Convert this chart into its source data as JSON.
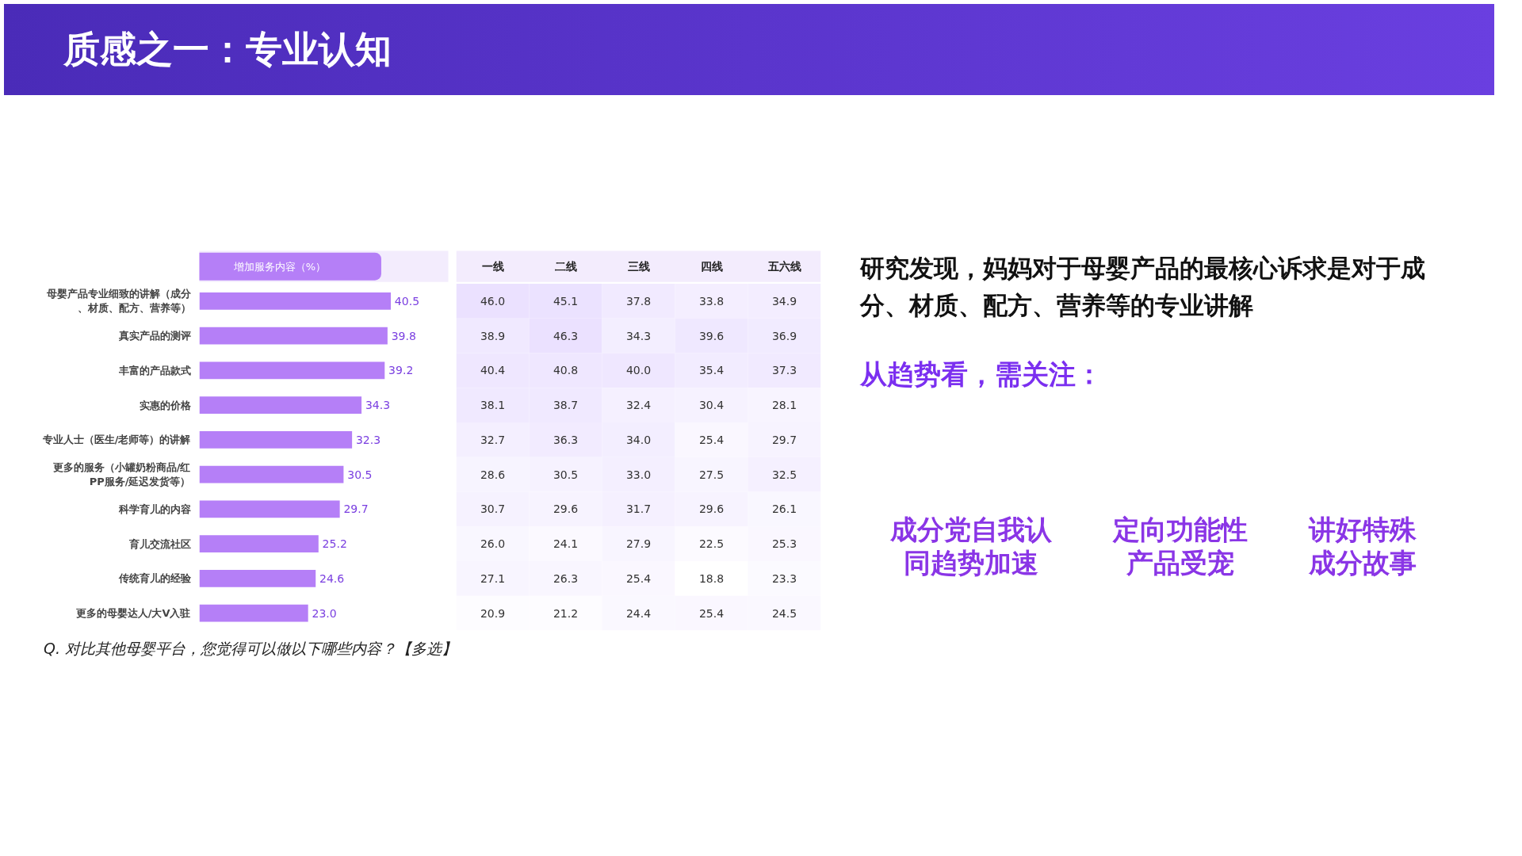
{
  "chart_data": [
    {
      "type": "bar",
      "orientation": "horizontal",
      "title": "质感之一：专业认知",
      "xlabel": "增加服务内容（%）",
      "categories": [
        "母婴产品专业细致的讲解（成分、材质、配方、营养等）",
        "真实产品的测评",
        "丰富的产品款式",
        "实惠的价格",
        "专业人士（医生/老师等）的讲解",
        "更多的服务（小罐奶粉商品/红PP服务/延迟发货等）",
        "科学育儿的内容",
        "育儿交流社区",
        "传统育儿的经验",
        "更多的母婴达人/大V入驻"
      ],
      "values": [
        40.5,
        39.8,
        39.2,
        34.3,
        32.3,
        30.5,
        29.7,
        25.2,
        24.6,
        23.0
      ],
      "color": "#b57ff7",
      "value_labels": [
        "40.5",
        "39.8",
        "39.2",
        "34.3",
        "32.3",
        "30.5",
        "29.7",
        "25.2",
        "24.6",
        "23.0"
      ],
      "annotations": [
        "Q. 对比其他母婴平台，您觉得可以做以下哪些内容？【多选】"
      ]
    },
    {
      "type": "heatmap",
      "categories": [
        "一线",
        "二线",
        "三线",
        "四线",
        "五六线"
      ],
      "y_categories": [
        null,
        null,
        null,
        null,
        null,
        null,
        null,
        null,
        null,
        null
      ],
      "cells": [
        [
          46.0,
          45.1,
          37.8,
          33.8,
          34.9
        ],
        [
          38.9,
          46.3,
          34.3,
          39.6,
          36.9
        ],
        [
          40.4,
          40.8,
          40.0,
          35.4,
          37.3
        ],
        [
          38.1,
          38.7,
          32.4,
          30.4,
          28.1
        ],
        [
          32.7,
          36.3,
          34.0,
          25.4,
          29.7
        ],
        [
          28.6,
          30.5,
          33.0,
          27.5,
          32.5
        ],
        [
          30.7,
          29.6,
          31.7,
          29.6,
          26.1
        ],
        [
          26.0,
          24.1,
          27.9,
          22.5,
          25.3
        ],
        [
          27.1,
          26.3,
          25.4,
          18.8,
          23.3
        ],
        [
          20.9,
          21.2,
          24.4,
          25.4,
          24.5
        ]
      ],
      "cell_labels": [
        [
          "46.0",
          "45.1",
          "37.8",
          "33.8",
          "34.9"
        ],
        [
          "38.9",
          "46.3",
          "34.3",
          "39.6",
          "36.9"
        ],
        [
          "40.4",
          "40.8",
          "40.0",
          "35.4",
          "37.3"
        ],
        [
          "38.1",
          "38.7",
          "32.4",
          "30.4",
          "28.1"
        ],
        [
          "32.7",
          "36.3",
          "34.0",
          "25.4",
          "29.7"
        ],
        [
          "28.6",
          "30.5",
          "33.0",
          "27.5",
          "32.5"
        ],
        [
          "30.7",
          "29.6",
          "31.7",
          "29.6",
          "26.1"
        ],
        [
          "26.0",
          "24.1",
          "27.9",
          "22.5",
          "25.3"
        ],
        [
          "27.1",
          "26.3",
          "25.4",
          "18.8",
          "23.3"
        ],
        [
          "20.9",
          "21.2",
          "24.4",
          "25.4",
          "24.5"
        ]
      ]
    },
    {
      "type": "other",
      "title": "研究发现，妈妈对于母婴产品的最核心诉求是对于成分、材质、配方、营养等的专业讲解",
      "subtitle": "从趋势看，需关注：",
      "annotations": [
        "成分党自我认同趋势加速",
        "定向功能性产品受宠",
        "讲好特殊成分故事"
      ]
    }
  ]
}
